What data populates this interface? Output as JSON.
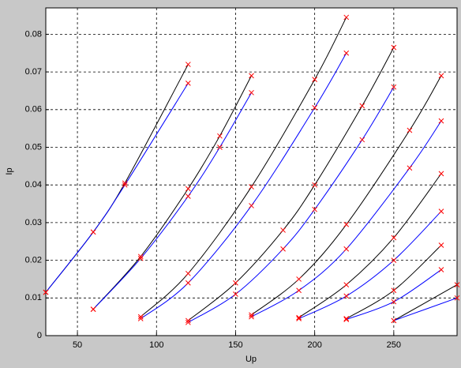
{
  "chart_data": {
    "type": "line",
    "xlabel": "Up",
    "ylabel": "Ip",
    "xlim": [
      30,
      290
    ],
    "ylim": [
      0,
      0.087
    ],
    "xticks": [
      50,
      100,
      150,
      200,
      250
    ],
    "yticks": [
      0,
      0.01,
      0.02,
      0.03,
      0.04,
      0.05,
      0.06,
      0.07,
      0.08
    ],
    "grid": true,
    "marker_color": "#ff0000",
    "series": [
      {
        "color": "#000000",
        "x": [
          30,
          60,
          80,
          120
        ],
        "values": [
          0.0115,
          0.0275,
          0.0405,
          0.072
        ]
      },
      {
        "color": "#0000ff",
        "x": [
          30,
          60,
          80,
          120
        ],
        "values": [
          0.0115,
          0.0275,
          0.04,
          0.067
        ]
      },
      {
        "color": "#000000",
        "x": [
          60,
          90,
          120,
          140,
          160
        ],
        "values": [
          0.007,
          0.021,
          0.039,
          0.053,
          0.069
        ]
      },
      {
        "color": "#0000ff",
        "x": [
          60,
          90,
          120,
          140,
          160
        ],
        "values": [
          0.007,
          0.0205,
          0.037,
          0.05,
          0.0645
        ]
      },
      {
        "color": "#000000",
        "x": [
          90,
          120,
          160,
          200,
          220
        ],
        "values": [
          0.005,
          0.0165,
          0.0395,
          0.068,
          0.0845
        ]
      },
      {
        "color": "#0000ff",
        "x": [
          90,
          120,
          160,
          200,
          220
        ],
        "values": [
          0.0045,
          0.014,
          0.0345,
          0.0605,
          0.075
        ]
      },
      {
        "color": "#000000",
        "x": [
          120,
          150,
          180,
          200,
          230,
          250
        ],
        "values": [
          0.004,
          0.014,
          0.028,
          0.04,
          0.061,
          0.0765
        ]
      },
      {
        "color": "#0000ff",
        "x": [
          120,
          150,
          180,
          200,
          230,
          250
        ],
        "values": [
          0.0035,
          0.011,
          0.023,
          0.0335,
          0.052,
          0.066
        ]
      },
      {
        "color": "#000000",
        "x": [
          160,
          190,
          220,
          260,
          280
        ],
        "values": [
          0.0055,
          0.015,
          0.0295,
          0.0545,
          0.069
        ]
      },
      {
        "color": "#0000ff",
        "x": [
          160,
          190,
          220,
          260,
          280
        ],
        "values": [
          0.005,
          0.012,
          0.023,
          0.0445,
          0.057
        ]
      },
      {
        "color": "#000000",
        "x": [
          190,
          220,
          250,
          280
        ],
        "values": [
          0.0048,
          0.0135,
          0.026,
          0.043
        ]
      },
      {
        "color": "#0000ff",
        "x": [
          190,
          220,
          250,
          280
        ],
        "values": [
          0.0045,
          0.0105,
          0.02,
          0.033
        ]
      },
      {
        "color": "#000000",
        "x": [
          220,
          250,
          280
        ],
        "values": [
          0.0045,
          0.012,
          0.024
        ]
      },
      {
        "color": "#0000ff",
        "x": [
          220,
          250,
          280
        ],
        "values": [
          0.0043,
          0.009,
          0.0175
        ]
      },
      {
        "color": "#000000",
        "x": [
          250,
          290
        ],
        "values": [
          0.004,
          0.0135
        ]
      },
      {
        "color": "#0000ff",
        "x": [
          250,
          290
        ],
        "values": [
          0.004,
          0.01
        ]
      }
    ]
  }
}
